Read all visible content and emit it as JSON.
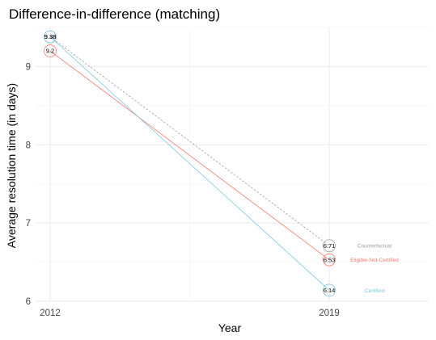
{
  "chart_data": {
    "type": "line",
    "title": "Difference-in-difference (matching)",
    "xlabel": "Year",
    "ylabel": "Average resolution time (in days)",
    "categories": [
      "2012",
      "2019"
    ],
    "ylim": [
      6,
      9.5
    ],
    "y_ticks": [
      6,
      7,
      8,
      9
    ],
    "grid": true,
    "series": [
      {
        "name": "Counterfactual",
        "values": [
          9.38,
          6.71
        ],
        "labels": [
          "9.38",
          "6.71"
        ],
        "color": "#9e9e9e",
        "line_style": "dashed"
      },
      {
        "name": "Eligible-Not-Certified",
        "values": [
          9.2,
          6.53
        ],
        "labels": [
          "9.2",
          "6.53"
        ],
        "color": "#f8766d",
        "line_style": "solid"
      },
      {
        "name": "Certified",
        "values": [
          9.38,
          6.14
        ],
        "labels": [
          "9.38",
          "6.14"
        ],
        "color": "#7ec8e3",
        "line_style": "solid"
      }
    ]
  }
}
